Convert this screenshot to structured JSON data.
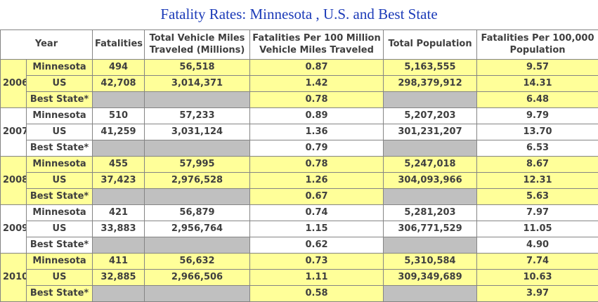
{
  "title": "Fatality Rates: Minnesota , U.S. and Best State",
  "colors": {
    "title_blue": "#1c3bb8",
    "group_highlight_yellow": "#ffff99",
    "empty_cell_gray": "#c0c0c0",
    "border_gray": "#848484",
    "text_dark": "#3f3f3f"
  },
  "table": {
    "headers": [
      "Year",
      "Fatalities",
      "Total Vehicle Miles Traveled (Millions)",
      "Fatalities Per 100 Million Vehicle Miles Traveled",
      "Total Population",
      "Fatalities Per 100,000 Population"
    ],
    "groups": [
      {
        "year": "2006",
        "rows": [
          {
            "entity": "Minnesota",
            "fatalities": "494",
            "vmt": "56,518",
            "per100m": "0.87",
            "population": "5,163,555",
            "per100k": "9.57"
          },
          {
            "entity": "US",
            "fatalities": "42,708",
            "vmt": "3,014,371",
            "per100m": "1.42",
            "population": "298,379,912",
            "per100k": "14.31"
          },
          {
            "entity": "Best State*",
            "fatalities": "",
            "vmt": "",
            "per100m": "0.78",
            "population": "",
            "per100k": "6.48"
          }
        ]
      },
      {
        "year": "2007",
        "rows": [
          {
            "entity": "Minnesota",
            "fatalities": "510",
            "vmt": "57,233",
            "per100m": "0.89",
            "population": "5,207,203",
            "per100k": "9.79"
          },
          {
            "entity": "US",
            "fatalities": "41,259",
            "vmt": "3,031,124",
            "per100m": "1.36",
            "population": "301,231,207",
            "per100k": "13.70"
          },
          {
            "entity": "Best State*",
            "fatalities": "",
            "vmt": "",
            "per100m": "0.79",
            "population": "",
            "per100k": "6.53"
          }
        ]
      },
      {
        "year": "2008",
        "rows": [
          {
            "entity": "Minnesota",
            "fatalities": "455",
            "vmt": "57,995",
            "per100m": "0.78",
            "population": "5,247,018",
            "per100k": "8.67"
          },
          {
            "entity": "US",
            "fatalities": "37,423",
            "vmt": "2,976,528",
            "per100m": "1.26",
            "population": "304,093,966",
            "per100k": "12.31"
          },
          {
            "entity": "Best State*",
            "fatalities": "",
            "vmt": "",
            "per100m": "0.67",
            "population": "",
            "per100k": "5.63"
          }
        ]
      },
      {
        "year": "2009",
        "rows": [
          {
            "entity": "Minnesota",
            "fatalities": "421",
            "vmt": "56,879",
            "per100m": "0.74",
            "population": "5,281,203",
            "per100k": "7.97"
          },
          {
            "entity": "US",
            "fatalities": "33,883",
            "vmt": "2,956,764",
            "per100m": "1.15",
            "population": "306,771,529",
            "per100k": "11.05"
          },
          {
            "entity": "Best State*",
            "fatalities": "",
            "vmt": "",
            "per100m": "0.62",
            "population": "",
            "per100k": "4.90"
          }
        ]
      },
      {
        "year": "2010",
        "rows": [
          {
            "entity": "Minnesota",
            "fatalities": "411",
            "vmt": "56,632",
            "per100m": "0.73",
            "population": "5,310,584",
            "per100k": "7.74"
          },
          {
            "entity": "US",
            "fatalities": "32,885",
            "vmt": "2,966,506",
            "per100m": "1.11",
            "population": "309,349,689",
            "per100k": "10.63"
          },
          {
            "entity": "Best State*",
            "fatalities": "",
            "vmt": "",
            "per100m": "0.58",
            "population": "",
            "per100k": "3.97"
          }
        ]
      }
    ]
  }
}
